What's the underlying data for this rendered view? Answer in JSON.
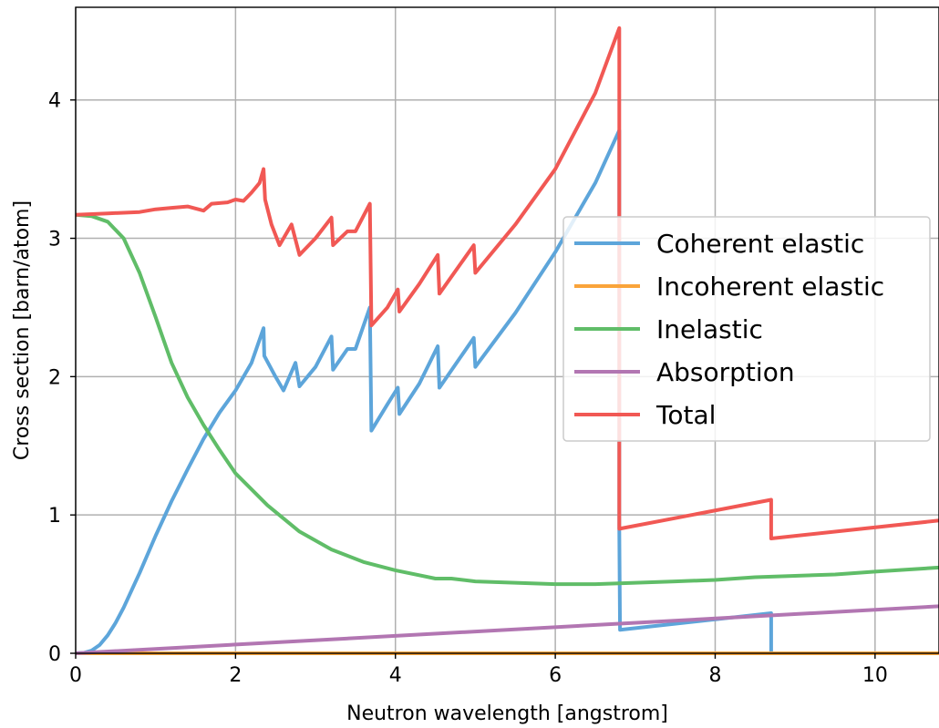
{
  "chart_data": {
    "type": "line",
    "title": "",
    "xlabel": "Neutron wavelength [angstrom]",
    "ylabel": "Cross section [barn/atom]",
    "xlim": [
      0,
      10.8
    ],
    "ylim": [
      0,
      4.67
    ],
    "x_ticks": [
      0,
      2,
      4,
      6,
      8,
      10
    ],
    "y_ticks": [
      0,
      1,
      2,
      3,
      4
    ],
    "grid": true,
    "legend_position": "center-right",
    "series": [
      {
        "name": "Coherent elastic",
        "color": "#5da5da",
        "points": [
          [
            0,
            0
          ],
          [
            0.1,
            0.003
          ],
          [
            0.2,
            0.02
          ],
          [
            0.3,
            0.06
          ],
          [
            0.4,
            0.13
          ],
          [
            0.5,
            0.22
          ],
          [
            0.6,
            0.33
          ],
          [
            0.8,
            0.58
          ],
          [
            1.0,
            0.85
          ],
          [
            1.2,
            1.1
          ],
          [
            1.4,
            1.33
          ],
          [
            1.6,
            1.55
          ],
          [
            1.8,
            1.74
          ],
          [
            2.0,
            1.9
          ],
          [
            2.2,
            2.1
          ],
          [
            2.35,
            2.35
          ],
          [
            2.36,
            2.15
          ],
          [
            2.5,
            2.0
          ],
          [
            2.6,
            1.9
          ],
          [
            2.75,
            2.1
          ],
          [
            2.8,
            1.93
          ],
          [
            3.0,
            2.07
          ],
          [
            3.2,
            2.29
          ],
          [
            3.22,
            2.05
          ],
          [
            3.4,
            2.2
          ],
          [
            3.5,
            2.2
          ],
          [
            3.68,
            2.5
          ],
          [
            3.7,
            1.61
          ],
          [
            3.9,
            1.8
          ],
          [
            4.03,
            1.92
          ],
          [
            4.05,
            1.73
          ],
          [
            4.3,
            1.95
          ],
          [
            4.53,
            2.22
          ],
          [
            4.55,
            1.92
          ],
          [
            4.98,
            2.28
          ],
          [
            5.0,
            2.07
          ],
          [
            5.5,
            2.46
          ],
          [
            6.0,
            2.9
          ],
          [
            6.5,
            3.4
          ],
          [
            6.8,
            3.78
          ],
          [
            6.8,
            0.9
          ],
          [
            6.81,
            0.17
          ],
          [
            8.7,
            0.29
          ],
          [
            8.7,
            0.0
          ],
          [
            10.8,
            0.0
          ]
        ]
      },
      {
        "name": "Incoherent elastic",
        "color": "#faa43a",
        "points": [
          [
            0,
            0.0
          ],
          [
            10.8,
            0.0
          ]
        ]
      },
      {
        "name": "Inelastic",
        "color": "#60bd68",
        "points": [
          [
            0,
            3.17
          ],
          [
            0.2,
            3.16
          ],
          [
            0.4,
            3.12
          ],
          [
            0.6,
            3.0
          ],
          [
            0.8,
            2.75
          ],
          [
            1.0,
            2.43
          ],
          [
            1.2,
            2.1
          ],
          [
            1.4,
            1.85
          ],
          [
            1.6,
            1.65
          ],
          [
            1.8,
            1.47
          ],
          [
            2.0,
            1.3
          ],
          [
            2.4,
            1.07
          ],
          [
            2.8,
            0.88
          ],
          [
            3.2,
            0.75
          ],
          [
            3.6,
            0.66
          ],
          [
            4.0,
            0.6
          ],
          [
            4.5,
            0.54
          ],
          [
            4.7,
            0.54
          ],
          [
            5.0,
            0.52
          ],
          [
            5.5,
            0.51
          ],
          [
            6.0,
            0.5
          ],
          [
            6.5,
            0.5
          ],
          [
            7.0,
            0.51
          ],
          [
            7.5,
            0.52
          ],
          [
            8.0,
            0.53
          ],
          [
            8.5,
            0.55
          ],
          [
            9.0,
            0.56
          ],
          [
            9.5,
            0.57
          ],
          [
            10.0,
            0.59
          ],
          [
            10.8,
            0.62
          ]
        ]
      },
      {
        "name": "Absorption",
        "color": "#b276b2",
        "points": [
          [
            0,
            0.0
          ],
          [
            10.8,
            0.34
          ]
        ]
      },
      {
        "name": "Total",
        "color": "#f15854",
        "points": [
          [
            0,
            3.17
          ],
          [
            0.4,
            3.18
          ],
          [
            0.8,
            3.19
          ],
          [
            1.0,
            3.21
          ],
          [
            1.2,
            3.22
          ],
          [
            1.4,
            3.23
          ],
          [
            1.6,
            3.2
          ],
          [
            1.7,
            3.25
          ],
          [
            1.9,
            3.26
          ],
          [
            2.0,
            3.28
          ],
          [
            2.1,
            3.27
          ],
          [
            2.2,
            3.33
          ],
          [
            2.3,
            3.4
          ],
          [
            2.35,
            3.5
          ],
          [
            2.37,
            3.28
          ],
          [
            2.45,
            3.1
          ],
          [
            2.55,
            2.95
          ],
          [
            2.7,
            3.1
          ],
          [
            2.8,
            2.88
          ],
          [
            3.0,
            3.0
          ],
          [
            3.2,
            3.15
          ],
          [
            3.22,
            2.95
          ],
          [
            3.4,
            3.05
          ],
          [
            3.5,
            3.05
          ],
          [
            3.68,
            3.25
          ],
          [
            3.7,
            2.37
          ],
          [
            3.9,
            2.5
          ],
          [
            4.03,
            2.63
          ],
          [
            4.05,
            2.47
          ],
          [
            4.3,
            2.67
          ],
          [
            4.53,
            2.88
          ],
          [
            4.55,
            2.6
          ],
          [
            4.98,
            2.95
          ],
          [
            5.0,
            2.75
          ],
          [
            5.5,
            3.1
          ],
          [
            6.0,
            3.5
          ],
          [
            6.5,
            4.05
          ],
          [
            6.8,
            4.52
          ],
          [
            6.8,
            0.9
          ],
          [
            8.7,
            1.11
          ],
          [
            8.7,
            0.83
          ],
          [
            10.8,
            0.96
          ]
        ]
      }
    ]
  }
}
